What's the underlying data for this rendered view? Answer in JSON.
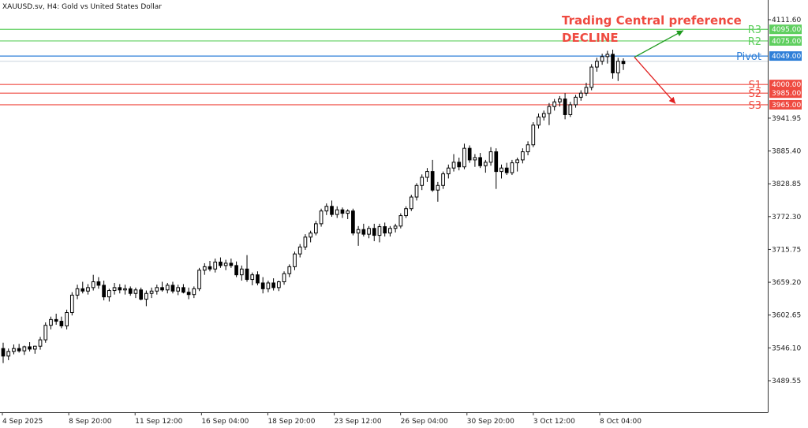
{
  "chart_data": {
    "type": "candlestick",
    "title": "XAUUSD.sv, H4:  Gold vs United States Dollar",
    "annotation_title": "Trading Central preference",
    "annotation_verdict": "DECLINE",
    "y_ticks": [
      "4111.60",
      "3941.95",
      "3885.40",
      "3828.85",
      "3772.30",
      "3715.75",
      "3659.20",
      "3602.65",
      "3546.10",
      "3489.55"
    ],
    "x_ticks": [
      "4 Sep 2025",
      "8 Sep 20:00",
      "11 Sep 12:00",
      "16 Sep 04:00",
      "18 Sep 20:00",
      "23 Sep 12:00",
      "26 Sep 04:00",
      "30 Sep 20:00",
      "3 Oct 12:00",
      "8 Oct 04:00"
    ],
    "ylim": [
      3455,
      4135
    ],
    "levels": [
      {
        "name": "R3",
        "value": 4095.0,
        "label": "4095.00",
        "color": "#5fcf5f",
        "box": "#5fcf5f"
      },
      {
        "name": "R2",
        "value": 4075.0,
        "label": "4075.00",
        "color": "#5fcf5f",
        "box": "#5fcf5f"
      },
      {
        "name": "Pivot",
        "value": 4049.0,
        "label": "4049.00",
        "color": "#2f7fd8",
        "box": "#2f7fd8"
      },
      {
        "name": "S1",
        "value": 4000.0,
        "label": "4000.00",
        "color": "#ef4a40",
        "box": "#ef4a40"
      },
      {
        "name": "S2",
        "value": 3985.0,
        "label": "3985.00",
        "color": "#ef4a40",
        "box": "#ef4a40"
      },
      {
        "name": "S3",
        "value": 3965.0,
        "label": "3965.00",
        "color": "#ef4a40",
        "box": "#ef4a40"
      }
    ],
    "current_price": 4040.0,
    "arrows": {
      "start": 4047.0,
      "up_end": 4093.0,
      "down_end": 3967.0,
      "up_color": "#1e9a1e",
      "down_color": "#e02020"
    },
    "candles": [
      [
        3545,
        3555,
        3520,
        3532
      ],
      [
        3532,
        3545,
        3525,
        3540
      ],
      [
        3540,
        3552,
        3535,
        3545
      ],
      [
        3545,
        3553,
        3538,
        3541
      ],
      [
        3541,
        3550,
        3534,
        3548
      ],
      [
        3548,
        3556,
        3540,
        3544
      ],
      [
        3544,
        3550,
        3536,
        3549
      ],
      [
        3549,
        3565,
        3543,
        3560
      ],
      [
        3560,
        3590,
        3555,
        3585
      ],
      [
        3585,
        3600,
        3578,
        3595
      ],
      [
        3595,
        3605,
        3586,
        3592
      ],
      [
        3592,
        3600,
        3580,
        3584
      ],
      [
        3584,
        3612,
        3578,
        3607
      ],
      [
        3607,
        3642,
        3602,
        3637
      ],
      [
        3637,
        3655,
        3630,
        3648
      ],
      [
        3648,
        3660,
        3640,
        3644
      ],
      [
        3644,
        3656,
        3638,
        3650
      ],
      [
        3650,
        3672,
        3645,
        3660
      ],
      [
        3660,
        3668,
        3648,
        3654
      ],
      [
        3654,
        3662,
        3628,
        3634
      ],
      [
        3634,
        3648,
        3626,
        3645
      ],
      [
        3645,
        3658,
        3638,
        3650
      ],
      [
        3650,
        3656,
        3640,
        3646
      ],
      [
        3646,
        3655,
        3638,
        3648
      ],
      [
        3648,
        3652,
        3636,
        3640
      ],
      [
        3640,
        3650,
        3632,
        3646
      ],
      [
        3646,
        3650,
        3628,
        3630
      ],
      [
        3630,
        3645,
        3618,
        3640
      ],
      [
        3640,
        3650,
        3632,
        3644
      ],
      [
        3644,
        3655,
        3638,
        3650
      ],
      [
        3650,
        3660,
        3643,
        3646
      ],
      [
        3646,
        3658,
        3640,
        3654
      ],
      [
        3654,
        3660,
        3640,
        3644
      ],
      [
        3644,
        3655,
        3637,
        3650
      ],
      [
        3650,
        3656,
        3640,
        3642
      ],
      [
        3642,
        3650,
        3630,
        3638
      ],
      [
        3638,
        3652,
        3632,
        3648
      ],
      [
        3648,
        3684,
        3644,
        3680
      ],
      [
        3680,
        3692,
        3672,
        3686
      ],
      [
        3686,
        3696,
        3678,
        3682
      ],
      [
        3682,
        3700,
        3676,
        3694
      ],
      [
        3694,
        3702,
        3684,
        3688
      ],
      [
        3688,
        3698,
        3680,
        3692
      ],
      [
        3692,
        3700,
        3684,
        3688
      ],
      [
        3688,
        3695,
        3668,
        3672
      ],
      [
        3672,
        3688,
        3662,
        3682
      ],
      [
        3682,
        3706,
        3660,
        3664
      ],
      [
        3664,
        3676,
        3654,
        3672
      ],
      [
        3672,
        3678,
        3654,
        3658
      ],
      [
        3658,
        3668,
        3640,
        3648
      ],
      [
        3648,
        3662,
        3642,
        3658
      ],
      [
        3658,
        3666,
        3645,
        3650
      ],
      [
        3650,
        3662,
        3644,
        3660
      ],
      [
        3660,
        3678,
        3655,
        3674
      ],
      [
        3674,
        3690,
        3668,
        3686
      ],
      [
        3686,
        3712,
        3680,
        3708
      ],
      [
        3708,
        3725,
        3702,
        3720
      ],
      [
        3720,
        3742,
        3715,
        3737
      ],
      [
        3737,
        3748,
        3728,
        3744
      ],
      [
        3744,
        3765,
        3740,
        3760
      ],
      [
        3760,
        3786,
        3755,
        3782
      ],
      [
        3782,
        3795,
        3775,
        3790
      ],
      [
        3790,
        3800,
        3772,
        3776
      ],
      [
        3776,
        3790,
        3770,
        3784
      ],
      [
        3784,
        3788,
        3770,
        3778
      ],
      [
        3778,
        3785,
        3768,
        3782
      ],
      [
        3782,
        3786,
        3740,
        3744
      ],
      [
        3744,
        3756,
        3722,
        3750
      ],
      [
        3750,
        3760,
        3738,
        3742
      ],
      [
        3742,
        3756,
        3735,
        3752
      ],
      [
        3752,
        3760,
        3730,
        3740
      ],
      [
        3740,
        3760,
        3728,
        3755
      ],
      [
        3755,
        3762,
        3738,
        3744
      ],
      [
        3744,
        3756,
        3738,
        3752
      ],
      [
        3752,
        3760,
        3745,
        3756
      ],
      [
        3756,
        3778,
        3752,
        3774
      ],
      [
        3774,
        3790,
        3770,
        3786
      ],
      [
        3786,
        3810,
        3782,
        3806
      ],
      [
        3806,
        3830,
        3800,
        3826
      ],
      [
        3826,
        3845,
        3818,
        3840
      ],
      [
        3840,
        3856,
        3832,
        3850
      ],
      [
        3850,
        3870,
        3815,
        3818
      ],
      [
        3818,
        3832,
        3798,
        3826
      ],
      [
        3826,
        3850,
        3820,
        3846
      ],
      [
        3846,
        3862,
        3838,
        3856
      ],
      [
        3856,
        3880,
        3850,
        3866
      ],
      [
        3866,
        3874,
        3852,
        3858
      ],
      [
        3858,
        3898,
        3854,
        3890
      ],
      [
        3890,
        3895,
        3865,
        3870
      ],
      [
        3870,
        3880,
        3858,
        3874
      ],
      [
        3874,
        3882,
        3856,
        3860
      ],
      [
        3860,
        3870,
        3848,
        3866
      ],
      [
        3866,
        3892,
        3860,
        3884
      ],
      [
        3884,
        3890,
        3820,
        3850
      ],
      [
        3850,
        3862,
        3838,
        3856
      ],
      [
        3856,
        3865,
        3844,
        3848
      ],
      [
        3848,
        3870,
        3844,
        3865
      ],
      [
        3865,
        3874,
        3850,
        3870
      ],
      [
        3870,
        3890,
        3864,
        3884
      ],
      [
        3884,
        3902,
        3878,
        3896
      ],
      [
        3896,
        3935,
        3892,
        3930
      ],
      [
        3930,
        3950,
        3924,
        3944
      ],
      [
        3944,
        3955,
        3938,
        3950
      ],
      [
        3950,
        3968,
        3930,
        3962
      ],
      [
        3962,
        3975,
        3955,
        3970
      ],
      [
        3970,
        3980,
        3962,
        3975
      ],
      [
        3975,
        3985,
        3940,
        3948
      ],
      [
        3948,
        3970,
        3944,
        3965
      ],
      [
        3965,
        3982,
        3960,
        3978
      ],
      [
        3978,
        3990,
        3972,
        3985
      ],
      [
        3985,
        4003,
        3980,
        3995
      ],
      [
        3995,
        4035,
        3990,
        4030
      ],
      [
        4030,
        4046,
        4022,
        4040
      ],
      [
        4040,
        4053,
        4034,
        4048
      ],
      [
        4048,
        4058,
        4036,
        4052
      ],
      [
        4052,
        4060,
        4010,
        4020
      ],
      [
        4020,
        4046,
        4006,
        4040
      ],
      [
        4040,
        4045,
        4025,
        4036
      ]
    ]
  }
}
